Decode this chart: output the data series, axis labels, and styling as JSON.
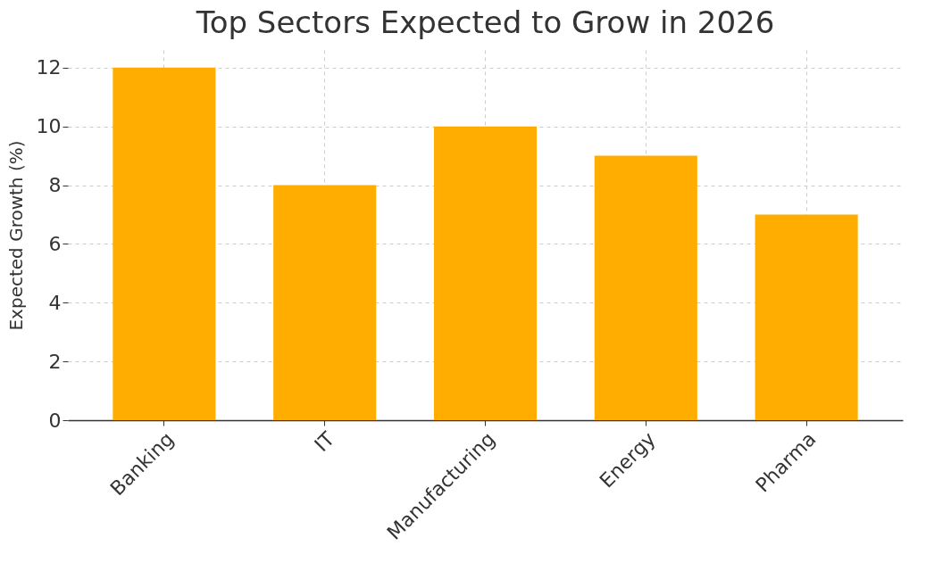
{
  "chart_data": {
    "type": "bar",
    "title": "Top Sectors Expected to Grow in 2026",
    "ylabel": "Expected Growth (%)",
    "categories": [
      "Banking",
      "IT",
      "Manufacturing",
      "Energy",
      "Pharma"
    ],
    "values": [
      12,
      8,
      10,
      9,
      7
    ],
    "color": "#ffad00",
    "ylim": [
      0,
      12.6
    ],
    "yticks": [
      0,
      2,
      4,
      6,
      8,
      10,
      12
    ],
    "grid": true
  }
}
